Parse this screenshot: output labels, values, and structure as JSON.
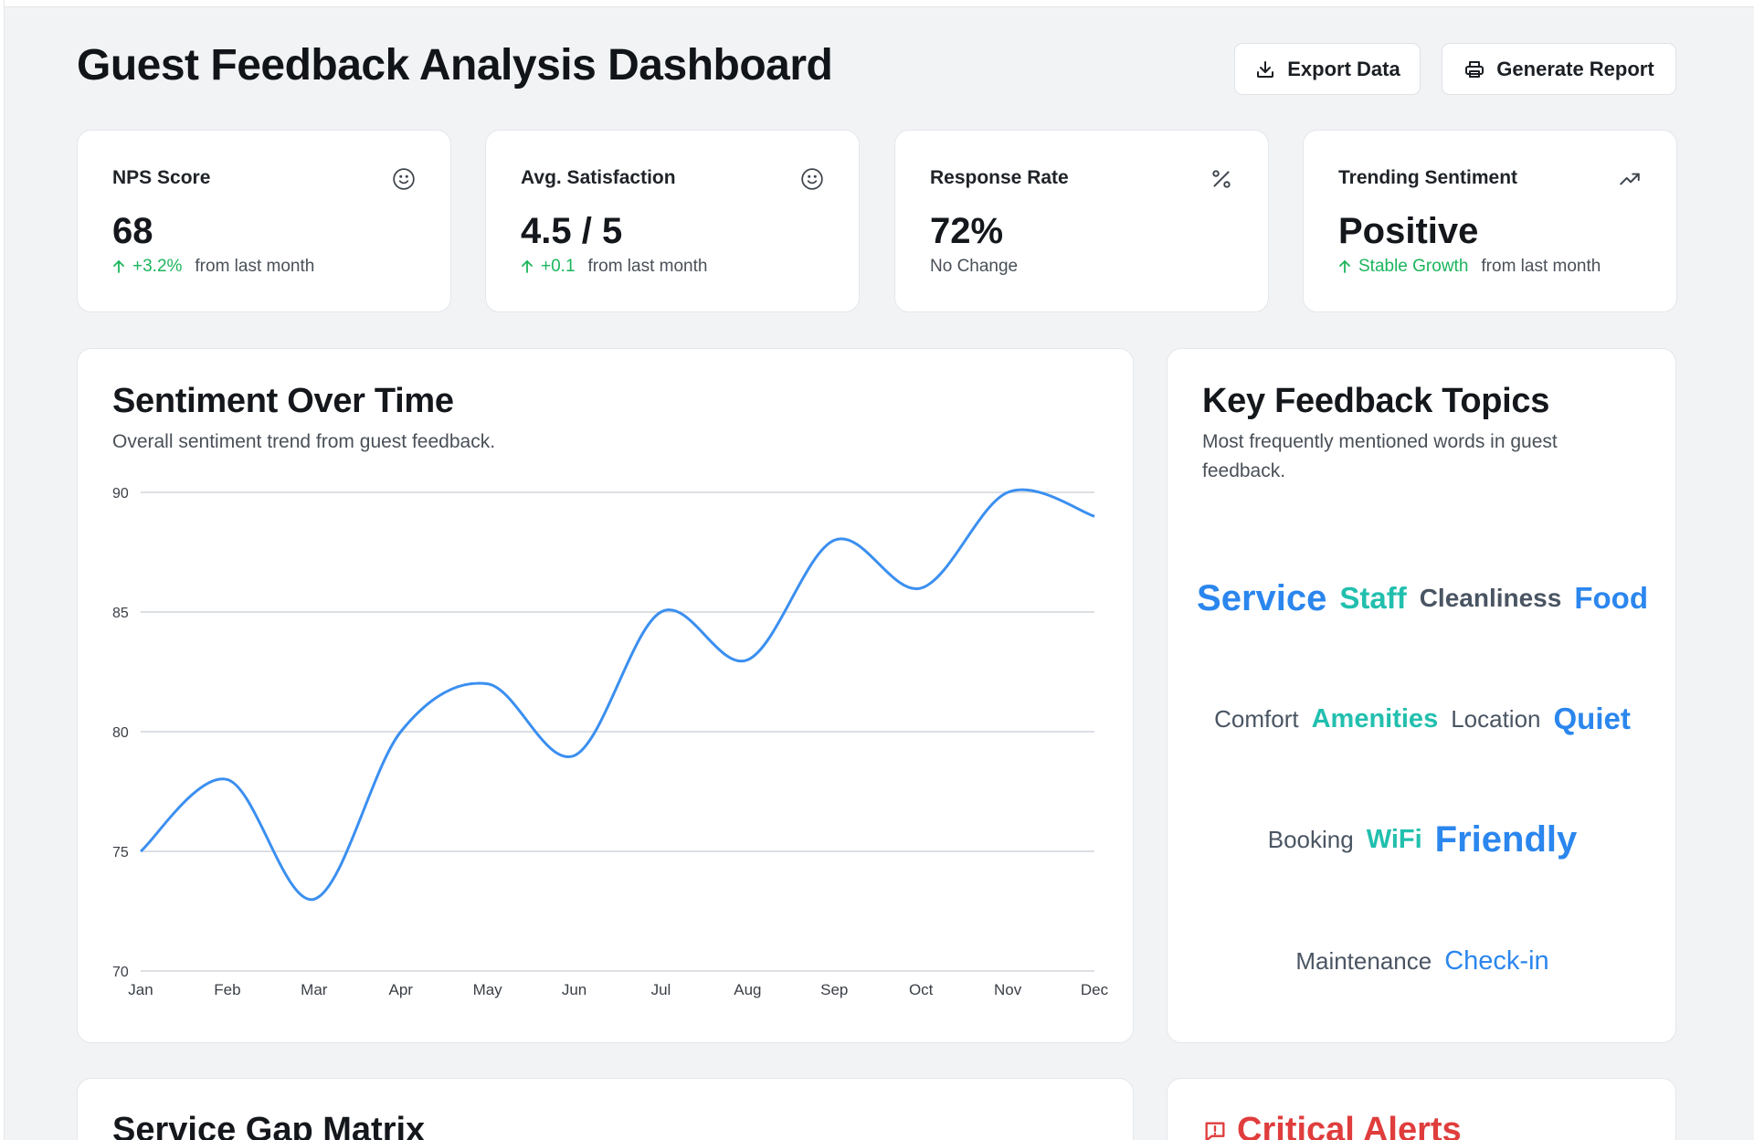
{
  "header": {
    "title": "Guest Feedback Analysis Dashboard",
    "export_label": "Export Data",
    "report_label": "Generate Report"
  },
  "stats": [
    {
      "label": "NPS Score",
      "value": "68",
      "delta": "+3.2%",
      "suffix": "from last month",
      "icon": "smile-icon"
    },
    {
      "label": "Avg. Satisfaction",
      "value": "4.5 / 5",
      "delta": "+0.1",
      "suffix": "from last month",
      "icon": "smile-icon"
    },
    {
      "label": "Response Rate",
      "value": "72%",
      "delta": "",
      "suffix": "No Change",
      "icon": "percent-icon"
    },
    {
      "label": "Trending Sentiment",
      "value": "Positive",
      "delta": "Stable Growth",
      "suffix": "from last month",
      "icon": "trending-up-icon"
    }
  ],
  "sentiment_card": {
    "title": "Sentiment Over Time",
    "subtitle": "Overall sentiment trend from guest feedback."
  },
  "chart_data": {
    "type": "line",
    "title": "Sentiment Over Time",
    "categories": [
      "Jan",
      "Feb",
      "Mar",
      "Apr",
      "May",
      "Jun",
      "Jul",
      "Aug",
      "Sep",
      "Oct",
      "Nov",
      "Dec"
    ],
    "series": [
      {
        "name": "Sentiment",
        "values": [
          75,
          78,
          73,
          80,
          82,
          79,
          85,
          83,
          88,
          86,
          90,
          89
        ]
      }
    ],
    "yticks": [
      70,
      75,
      80,
      85,
      90
    ],
    "ylim": [
      70,
      90
    ],
    "grid": true,
    "xlabel": "",
    "ylabel": "",
    "line_color": "#3b8ff0"
  },
  "topics_card": {
    "title": "Key Feedback Topics",
    "subtitle": "Most frequently mentioned words in guest feedback.",
    "rows": [
      [
        {
          "text": "Service",
          "size": 40,
          "color": "#2b86ee",
          "bold": true
        },
        {
          "text": "Staff",
          "size": 33,
          "color": "#22bfae",
          "bold": true
        },
        {
          "text": "Cleanliness",
          "size": 28,
          "color": "#4a5563",
          "bold": true
        },
        {
          "text": "Food",
          "size": 33,
          "color": "#2b86ee",
          "bold": true
        }
      ],
      [
        {
          "text": "Comfort",
          "size": 26,
          "color": "#4a5563",
          "bold": false
        },
        {
          "text": "Amenities",
          "size": 29,
          "color": "#22bfae",
          "bold": true
        },
        {
          "text": "Location",
          "size": 26,
          "color": "#4a5563",
          "bold": false
        },
        {
          "text": "Quiet",
          "size": 33,
          "color": "#2b86ee",
          "bold": true
        }
      ],
      [
        {
          "text": "Booking",
          "size": 26,
          "color": "#4a5563",
          "bold": false
        },
        {
          "text": "WiFi",
          "size": 29,
          "color": "#22bfae",
          "bold": true
        },
        {
          "text": "Friendly",
          "size": 40,
          "color": "#2b86ee",
          "bold": true
        }
      ],
      [
        {
          "text": "Maintenance",
          "size": 26,
          "color": "#4a5563",
          "bold": false
        },
        {
          "text": "Check-in",
          "size": 29,
          "color": "#2b86ee",
          "bold": false
        }
      ]
    ]
  },
  "service_gap": {
    "title": "Service Gap Matrix"
  },
  "alerts": {
    "title": "Critical Alerts"
  }
}
